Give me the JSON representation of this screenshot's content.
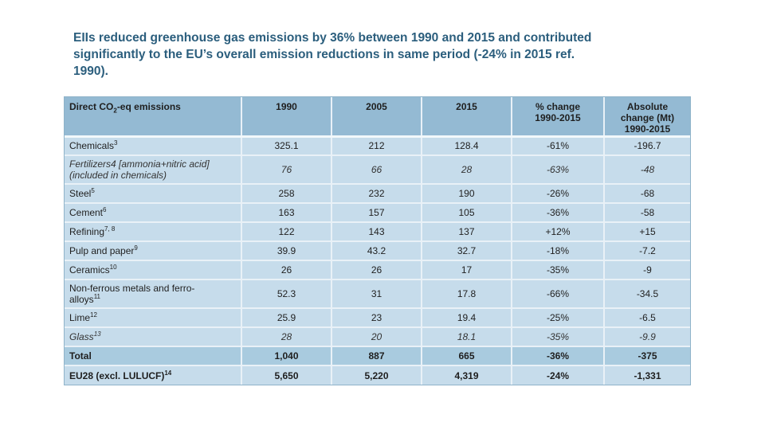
{
  "colors": {
    "title_text": "#2B5E7D",
    "header_bg": "#94BAD3",
    "body_bg": "#C6DCEB",
    "total_bg": "#A9CBDF",
    "grid_line": "#E9F1F7",
    "outer_border": "#8FB3C9",
    "cell_text": "#1F1F1F"
  },
  "slide": {
    "title_lines": [
      "EIIs reduced greenhouse gas emissions by 36% between 1990 and 2015 and contributed",
      "significantly to the EU’s overall emission reductions in same period (-24% in 2015 ref.",
      "1990)."
    ]
  },
  "table": {
    "header": {
      "col1": {
        "pre": "Direct CO",
        "sub": "2",
        "post": "-eq emissions"
      },
      "cols": [
        [
          "1990"
        ],
        [
          "2005"
        ],
        [
          "2015"
        ],
        [
          "% change",
          "1990-2015"
        ],
        [
          "Absolute",
          "change (Mt)",
          "1990-2015"
        ]
      ]
    },
    "rows": [
      {
        "label": "Chemicals",
        "sup": "3",
        "label2": "",
        "sup2": "",
        "style": "normal",
        "values": [
          "325.1",
          "212",
          "128.4",
          "-61%",
          "-196.7"
        ]
      },
      {
        "label": "Fertilizers4 [ammonia+nitric acid]",
        "sup": "",
        "label2": "(included in chemicals)",
        "sup2": "",
        "style": "italic",
        "values": [
          "76",
          "66",
          "28",
          "-63%",
          "-48"
        ]
      },
      {
        "label": "Steel",
        "sup": "5",
        "label2": "",
        "sup2": "",
        "style": "normal",
        "values": [
          "258",
          "232",
          "190",
          "-26%",
          "-68"
        ]
      },
      {
        "label": "Cement",
        "sup": "6",
        "label2": "",
        "sup2": "",
        "style": "normal",
        "values": [
          "163",
          "157",
          "105",
          "-36%",
          "-58"
        ]
      },
      {
        "label": "Refining",
        "sup": "7, 8",
        "label2": "",
        "sup2": "",
        "style": "normal",
        "values": [
          "122",
          "143",
          "137",
          "+12%",
          "+15"
        ]
      },
      {
        "label": "Pulp and paper",
        "sup": "9",
        "label2": "",
        "sup2": "",
        "style": "normal",
        "values": [
          "39.9",
          "43.2",
          "32.7",
          "-18%",
          "-7.2"
        ]
      },
      {
        "label": "Ceramics",
        "sup": "10",
        "label2": "",
        "sup2": "",
        "style": "normal",
        "values": [
          "26",
          "26",
          "17",
          "-35%",
          "-9"
        ]
      },
      {
        "label": "Non-ferrous metals and ferro-",
        "sup": "",
        "label2": "alloys",
        "sup2": "11",
        "style": "normal",
        "values": [
          "52.3",
          "31",
          "17.8",
          "-66%",
          "-34.5"
        ]
      },
      {
        "label": "Lime",
        "sup": "12",
        "label2": "",
        "sup2": "",
        "style": "normal",
        "values": [
          "25.9",
          "23",
          "19.4",
          "-25%",
          "-6.5"
        ]
      },
      {
        "label": "Glass",
        "sup": "13",
        "label2": "",
        "sup2": "",
        "style": "italic",
        "values": [
          "28",
          "20",
          "18.1",
          "-35%",
          "-9.9"
        ]
      },
      {
        "label": "Total",
        "sup": "",
        "label2": "",
        "sup2": "",
        "style": "total",
        "values": [
          "1,040",
          "887",
          "665",
          "-36%",
          "-375"
        ]
      },
      {
        "label": "EU28 (excl. LULUCF)",
        "sup": "14",
        "label2": "",
        "sup2": "",
        "style": "bold",
        "values": [
          "5,650",
          "5,220",
          "4,319",
          "-24%",
          "-1,331"
        ]
      }
    ]
  }
}
